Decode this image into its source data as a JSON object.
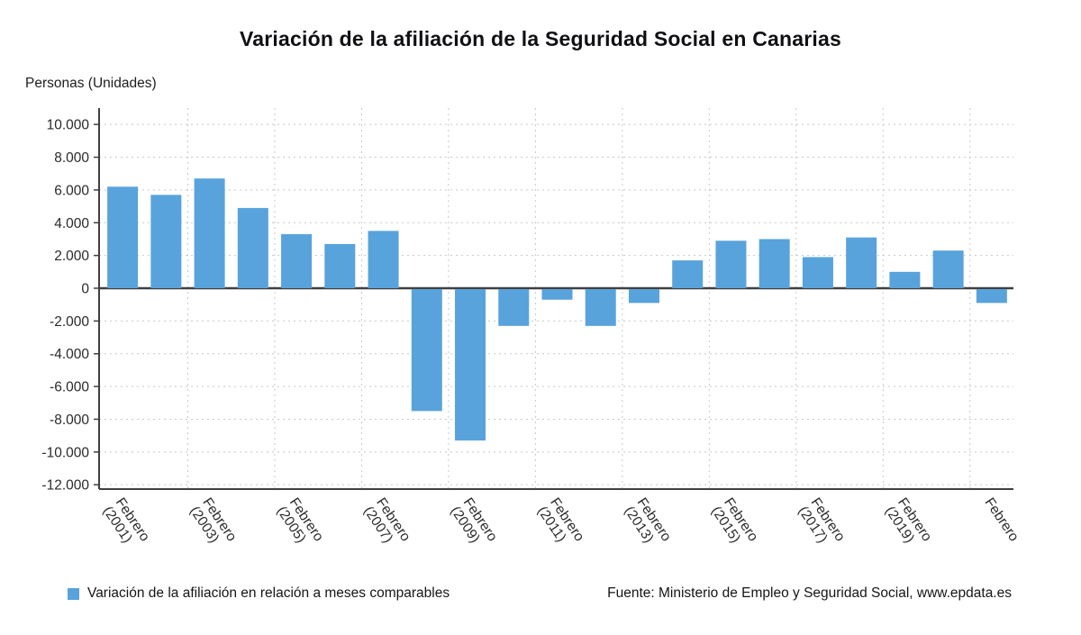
{
  "header": {
    "title": "Variación de la afiliación de la Seguridad Social en Canarias",
    "unit_label": "Personas (Unidades)"
  },
  "legend": {
    "swatch_color": "#58A3DC",
    "label": "Variación de la afiliación en relación a meses comparables",
    "source": "Fuente: Ministerio de Empleo y Seguridad Social, www.epdata.es"
  },
  "chart_data": {
    "type": "bar",
    "title": "Variación de la afiliación de la Seguridad Social en Canarias",
    "ylabel": "Personas (Unidades)",
    "ylim": [
      -12000,
      11000
    ],
    "grid": "dashed",
    "legend_position": "bottom",
    "bar_color": "#58A3DC",
    "values": [
      6200,
      5700,
      6700,
      4900,
      3300,
      2700,
      3500,
      -7500,
      -9300,
      -2300,
      -700,
      -2300,
      -900,
      1700,
      2900,
      3000,
      1900,
      3100,
      1000,
      2300,
      -900
    ],
    "y_ticks": [
      {
        "value": 10000,
        "label": "10.000"
      },
      {
        "value": 8000,
        "label": "8.000"
      },
      {
        "value": 6000,
        "label": "6.000"
      },
      {
        "value": 4000,
        "label": "4.000"
      },
      {
        "value": 2000,
        "label": "2.000"
      },
      {
        "value": 0,
        "label": "0"
      },
      {
        "value": -2000,
        "label": "-2.000"
      },
      {
        "value": -4000,
        "label": "-4.000"
      },
      {
        "value": -6000,
        "label": "-6.000"
      },
      {
        "value": -8000,
        "label": "-8.000"
      },
      {
        "value": -10000,
        "label": "-10.000"
      },
      {
        "value": -12000,
        "label": "-12.000"
      }
    ],
    "x_tick_labels": [
      {
        "bar": 0,
        "line1": "Febrero",
        "line2": "(2001)"
      },
      {
        "bar": 2,
        "line1": "Febrero",
        "line2": "(2003)"
      },
      {
        "bar": 4,
        "line1": "Febrero",
        "line2": "(2005)"
      },
      {
        "bar": 6,
        "line1": "Febrero",
        "line2": "(2007)"
      },
      {
        "bar": 8,
        "line1": "Febrero",
        "line2": "(2009)"
      },
      {
        "bar": 10,
        "line1": "Febrero",
        "line2": "(2011)"
      },
      {
        "bar": 12,
        "line1": "Febrero",
        "line2": "(2013)"
      },
      {
        "bar": 14,
        "line1": "Febrero",
        "line2": "(2015)"
      },
      {
        "bar": 16,
        "line1": "Febrero",
        "line2": "(2017)"
      },
      {
        "bar": 18,
        "line1": "Febrero",
        "line2": "(2019)"
      },
      {
        "bar": 20,
        "line1": "Febrero",
        "line2": ""
      }
    ]
  }
}
